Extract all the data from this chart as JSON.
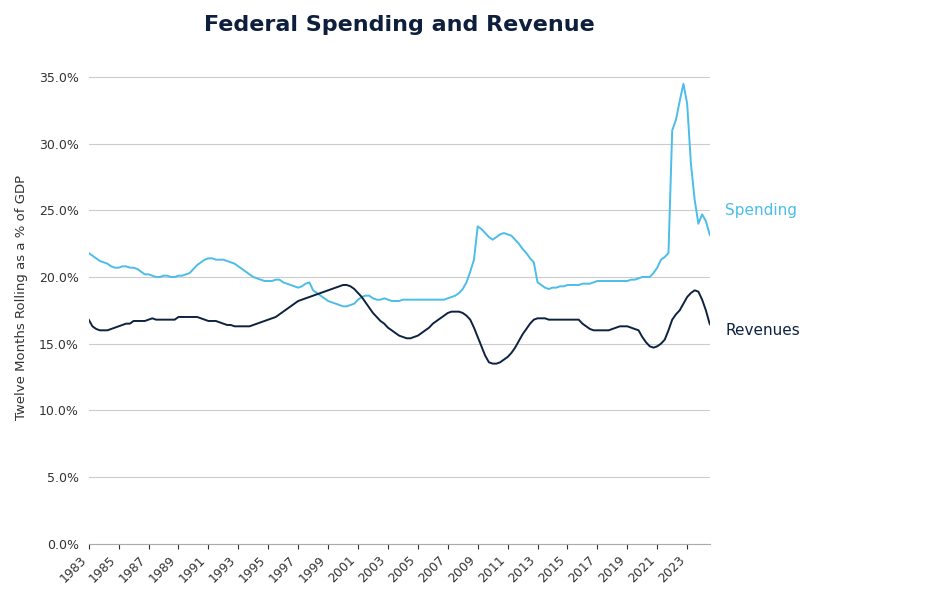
{
  "title": "Federal Spending and Revenue",
  "ylabel": "Twelve Months Rolling as a % of GDP",
  "spending_color": "#4BBDE8",
  "revenue_color": "#0D2240",
  "background_color": "#FFFFFF",
  "ylim": [
    0.0,
    0.37
  ],
  "yticks": [
    0.0,
    0.05,
    0.1,
    0.15,
    0.2,
    0.25,
    0.3,
    0.35
  ],
  "spending_label": "Spending",
  "revenue_label": "Revenues",
  "xticks": [
    1983,
    1985,
    1987,
    1989,
    1991,
    1993,
    1995,
    1997,
    1999,
    2001,
    2003,
    2005,
    2007,
    2009,
    2011,
    2013,
    2015,
    2017,
    2019,
    2021,
    2023
  ],
  "xlim": [
    1983,
    2024.5
  ],
  "spending_values": [
    0.218,
    0.216,
    0.214,
    0.212,
    0.211,
    0.21,
    0.208,
    0.207,
    0.207,
    0.208,
    0.208,
    0.207,
    0.207,
    0.206,
    0.204,
    0.202,
    0.202,
    0.201,
    0.2,
    0.2,
    0.201,
    0.201,
    0.2,
    0.2,
    0.201,
    0.201,
    0.202,
    0.203,
    0.206,
    0.209,
    0.211,
    0.213,
    0.214,
    0.214,
    0.213,
    0.213,
    0.213,
    0.212,
    0.211,
    0.21,
    0.208,
    0.206,
    0.204,
    0.202,
    0.2,
    0.199,
    0.198,
    0.197,
    0.197,
    0.197,
    0.198,
    0.198,
    0.196,
    0.195,
    0.194,
    0.193,
    0.192,
    0.193,
    0.195,
    0.196,
    0.19,
    0.188,
    0.186,
    0.184,
    0.182,
    0.181,
    0.18,
    0.179,
    0.178,
    0.178,
    0.179,
    0.18,
    0.183,
    0.185,
    0.186,
    0.186,
    0.184,
    0.183,
    0.183,
    0.184,
    0.183,
    0.182,
    0.182,
    0.182,
    0.183,
    0.183,
    0.183,
    0.183,
    0.183,
    0.183,
    0.183,
    0.183,
    0.183,
    0.183,
    0.183,
    0.183,
    0.184,
    0.185,
    0.186,
    0.188,
    0.191,
    0.196,
    0.204,
    0.213,
    0.238,
    0.236,
    0.233,
    0.23,
    0.228,
    0.23,
    0.232,
    0.233,
    0.232,
    0.231,
    0.228,
    0.225,
    0.221,
    0.218,
    0.214,
    0.211,
    0.196,
    0.194,
    0.192,
    0.191,
    0.192,
    0.192,
    0.193,
    0.193,
    0.194,
    0.194,
    0.194,
    0.194,
    0.195,
    0.195,
    0.195,
    0.196,
    0.197,
    0.197,
    0.197,
    0.197,
    0.197,
    0.197,
    0.197,
    0.197,
    0.197,
    0.198,
    0.198,
    0.199,
    0.2,
    0.2,
    0.2,
    0.203,
    0.207,
    0.213,
    0.215,
    0.218,
    0.31,
    0.318,
    0.332,
    0.345,
    0.33,
    0.285,
    0.258,
    0.24,
    0.247,
    0.242,
    0.232,
    0.227,
    0.222,
    0.25
  ],
  "revenue_values": [
    0.168,
    0.163,
    0.161,
    0.16,
    0.16,
    0.16,
    0.161,
    0.162,
    0.163,
    0.164,
    0.165,
    0.165,
    0.167,
    0.167,
    0.167,
    0.167,
    0.168,
    0.169,
    0.168,
    0.168,
    0.168,
    0.168,
    0.168,
    0.168,
    0.17,
    0.17,
    0.17,
    0.17,
    0.17,
    0.17,
    0.169,
    0.168,
    0.167,
    0.167,
    0.167,
    0.166,
    0.165,
    0.164,
    0.164,
    0.163,
    0.163,
    0.163,
    0.163,
    0.163,
    0.164,
    0.165,
    0.166,
    0.167,
    0.168,
    0.169,
    0.17,
    0.172,
    0.174,
    0.176,
    0.178,
    0.18,
    0.182,
    0.183,
    0.184,
    0.185,
    0.186,
    0.187,
    0.188,
    0.189,
    0.19,
    0.191,
    0.192,
    0.193,
    0.194,
    0.194,
    0.193,
    0.191,
    0.188,
    0.185,
    0.181,
    0.177,
    0.173,
    0.17,
    0.167,
    0.165,
    0.162,
    0.16,
    0.158,
    0.156,
    0.155,
    0.154,
    0.154,
    0.155,
    0.156,
    0.158,
    0.16,
    0.162,
    0.165,
    0.167,
    0.169,
    0.171,
    0.173,
    0.174,
    0.174,
    0.174,
    0.173,
    0.171,
    0.168,
    0.162,
    0.155,
    0.148,
    0.141,
    0.136,
    0.135,
    0.135,
    0.136,
    0.138,
    0.14,
    0.143,
    0.147,
    0.152,
    0.157,
    0.161,
    0.165,
    0.168,
    0.169,
    0.169,
    0.169,
    0.168,
    0.168,
    0.168,
    0.168,
    0.168,
    0.168,
    0.168,
    0.168,
    0.168,
    0.165,
    0.163,
    0.161,
    0.16,
    0.16,
    0.16,
    0.16,
    0.16,
    0.161,
    0.162,
    0.163,
    0.163,
    0.163,
    0.162,
    0.161,
    0.16,
    0.155,
    0.151,
    0.148,
    0.147,
    0.148,
    0.15,
    0.153,
    0.16,
    0.168,
    0.172,
    0.175,
    0.18,
    0.185,
    0.188,
    0.19,
    0.189,
    0.183,
    0.175,
    0.165,
    0.161,
    0.158,
    0.16
  ]
}
